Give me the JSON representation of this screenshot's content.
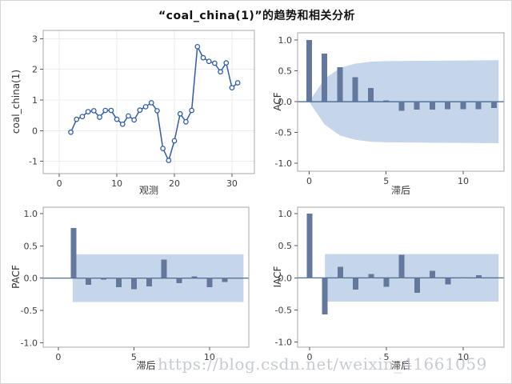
{
  "title": "“coal_china(1)”的趋势和相关分析",
  "watermark": "https://blog.csdn.net/weixin_41661059",
  "colors": {
    "series_line": "#2f5ca8",
    "marker_fill": "#ffffff",
    "bar_fill": "#64789e",
    "band_fill": "#c5d5ea",
    "zero_line": "#3d5f87",
    "panel_border": "#a3a7ab",
    "grid_line": "#ececec",
    "tick_mark": "#58595b",
    "tick_text": "#3c3c3c",
    "label_text": "#333333"
  },
  "chart_data": [
    {
      "type": "line",
      "name": "trend-series",
      "xlabel": "观测",
      "ylabel": "coal_china(1)",
      "xlim": [
        -2.8,
        33.9
      ],
      "ylim": [
        -1.4,
        3.27
      ],
      "xticks": [
        0,
        10,
        20,
        30
      ],
      "xtick_labels": [
        "0",
        "10",
        "20",
        "30"
      ],
      "yticks": [
        3,
        2,
        1,
        0,
        -1
      ],
      "ytick_labels": [
        "3",
        "2",
        "1",
        "0",
        "-1"
      ],
      "grid": true,
      "x": [
        2,
        3,
        4,
        5,
        6,
        7,
        8,
        9,
        10,
        11,
        12,
        13,
        14,
        15,
        16,
        17,
        18,
        19,
        20,
        21,
        22,
        23,
        24,
        25,
        26,
        27,
        28,
        29,
        30,
        31
      ],
      "y": [
        -0.05,
        0.37,
        0.46,
        0.62,
        0.65,
        0.44,
        0.66,
        0.66,
        0.37,
        0.21,
        0.48,
        0.35,
        0.67,
        0.78,
        0.91,
        0.65,
        -0.58,
        -0.97,
        -0.33,
        0.55,
        0.29,
        0.66,
        2.74,
        2.38,
        2.26,
        2.2,
        1.92,
        2.21,
        1.4,
        1.56
      ]
    },
    {
      "type": "bar",
      "name": "acf",
      "xlabel": "滞后",
      "ylabel": "ACF",
      "xlim": [
        -0.75,
        12.65
      ],
      "ylim": [
        -1.13,
        1.12
      ],
      "xticks": [
        0,
        5,
        10
      ],
      "xtick_labels": [
        "0",
        "5",
        "10"
      ],
      "yticks": [
        1.0,
        0.5,
        0.0,
        -0.5,
        -1.0
      ],
      "ytick_labels": [
        "1.0",
        "0.5",
        "0.0",
        "-0.5",
        "-1.0"
      ],
      "grid": false,
      "zero_line": true,
      "band": {
        "kind": "area",
        "x": [
          0.05,
          1,
          2,
          3,
          4,
          5,
          6,
          8,
          10,
          12.3
        ],
        "upper": [
          0.02,
          0.37,
          0.55,
          0.62,
          0.65,
          0.66,
          0.662,
          0.666,
          0.67,
          0.675
        ]
      },
      "x": [
        0,
        1,
        2,
        3,
        4,
        5,
        6,
        7,
        8,
        9,
        10,
        11,
        12
      ],
      "y": [
        1.0,
        0.78,
        0.56,
        0.4,
        0.22,
        0.02,
        -0.15,
        -0.13,
        -0.13,
        -0.12,
        -0.12,
        -0.12,
        -0.1
      ]
    },
    {
      "type": "bar",
      "name": "pacf",
      "xlabel": "滞后",
      "ylabel": "PACF",
      "xlim": [
        -1.0,
        12.6
      ],
      "ylim": [
        -1.07,
        1.1
      ],
      "xticks": [
        0,
        5,
        10
      ],
      "xtick_labels": [
        "0",
        "5",
        "10"
      ],
      "yticks": [
        1.0,
        0.5,
        0.0,
        -0.5,
        -1.0
      ],
      "ytick_labels": [
        "1.0",
        "0.5",
        "0.0",
        "-0.5",
        "-1.0"
      ],
      "grid": false,
      "zero_line": true,
      "band": {
        "kind": "rect",
        "x0": 0.95,
        "x1": 12.25,
        "y0": -0.37,
        "y1": 0.37
      },
      "x": [
        1,
        2,
        3,
        4,
        5,
        6,
        7,
        8,
        9,
        10,
        11,
        12
      ],
      "y": [
        0.78,
        -0.1,
        -0.02,
        -0.14,
        -0.17,
        -0.13,
        0.29,
        -0.08,
        0.03,
        -0.14,
        -0.06,
        0.0
      ]
    },
    {
      "type": "bar",
      "name": "iacf",
      "xlabel": "滞后",
      "ylabel": "IACF",
      "xlim": [
        -0.78,
        12.65
      ],
      "ylim": [
        -1.08,
        1.1
      ],
      "xticks": [
        0,
        5,
        10
      ],
      "xtick_labels": [
        "0",
        "5",
        "10"
      ],
      "yticks": [
        1.0,
        0.5,
        0.0,
        -0.5,
        -1.0
      ],
      "ytick_labels": [
        "1.0",
        "0.5",
        "0.0",
        "-0.5",
        "-1.0"
      ],
      "grid": false,
      "zero_line": true,
      "band": {
        "kind": "rect",
        "x0": 1.0,
        "x1": 12.3,
        "y0": -0.37,
        "y1": 0.37
      },
      "x": [
        0,
        1,
        2,
        3,
        4,
        5,
        6,
        7,
        8,
        9,
        10,
        11,
        12
      ],
      "y": [
        1.0,
        -0.57,
        0.17,
        -0.18,
        0.06,
        -0.14,
        0.36,
        -0.23,
        0.11,
        -0.1,
        0.01,
        0.04,
        0.0
      ]
    }
  ]
}
